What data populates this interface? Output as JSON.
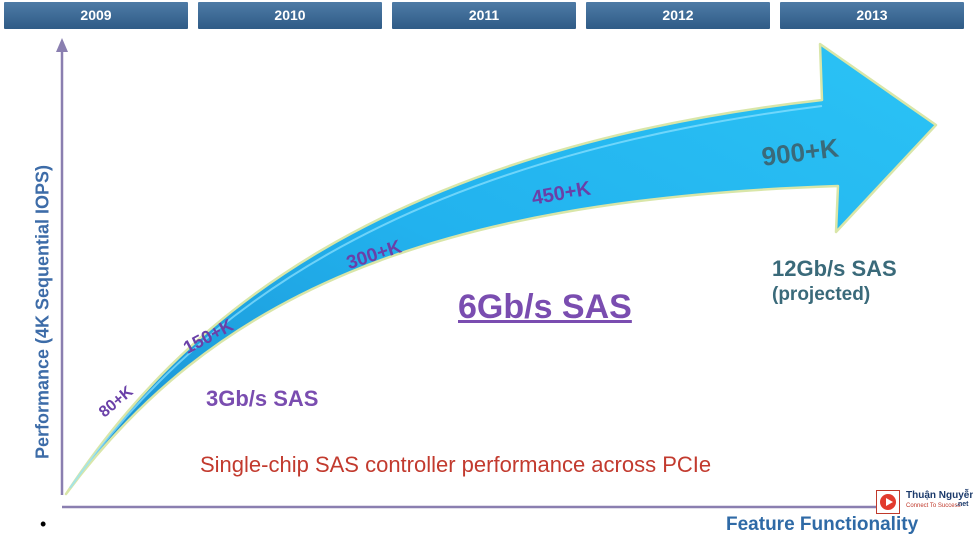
{
  "timeline": {
    "years": [
      "2009",
      "2010",
      "2011",
      "2012",
      "2013"
    ]
  },
  "axes": {
    "y_label": "Performance (4K Sequential IOPS)",
    "x_label": "Feature Functionality"
  },
  "arrow": {
    "milestones": [
      "80+K",
      "150+K",
      "300+K",
      "450+K",
      "900+K"
    ]
  },
  "labels": {
    "sas_6": "6Gb/s SAS",
    "sas_3": "3Gb/s SAS",
    "sas_12": "12Gb/s SAS",
    "sas_12_note": "(projected)",
    "caption": "Single-chip SAS controller performance across PCIe",
    "bullet": "•"
  },
  "watermark": {
    "name": "Thuận Nguyễn",
    "tagline": "Connect To Success",
    "suffix": ".net"
  },
  "colors": {
    "year_box": "#3d6a96",
    "arrow_fill": "#1fb0ec",
    "axis": "#8a7fb0",
    "milestone_text": "#6a40a8",
    "caption_text": "#c23a2e"
  }
}
